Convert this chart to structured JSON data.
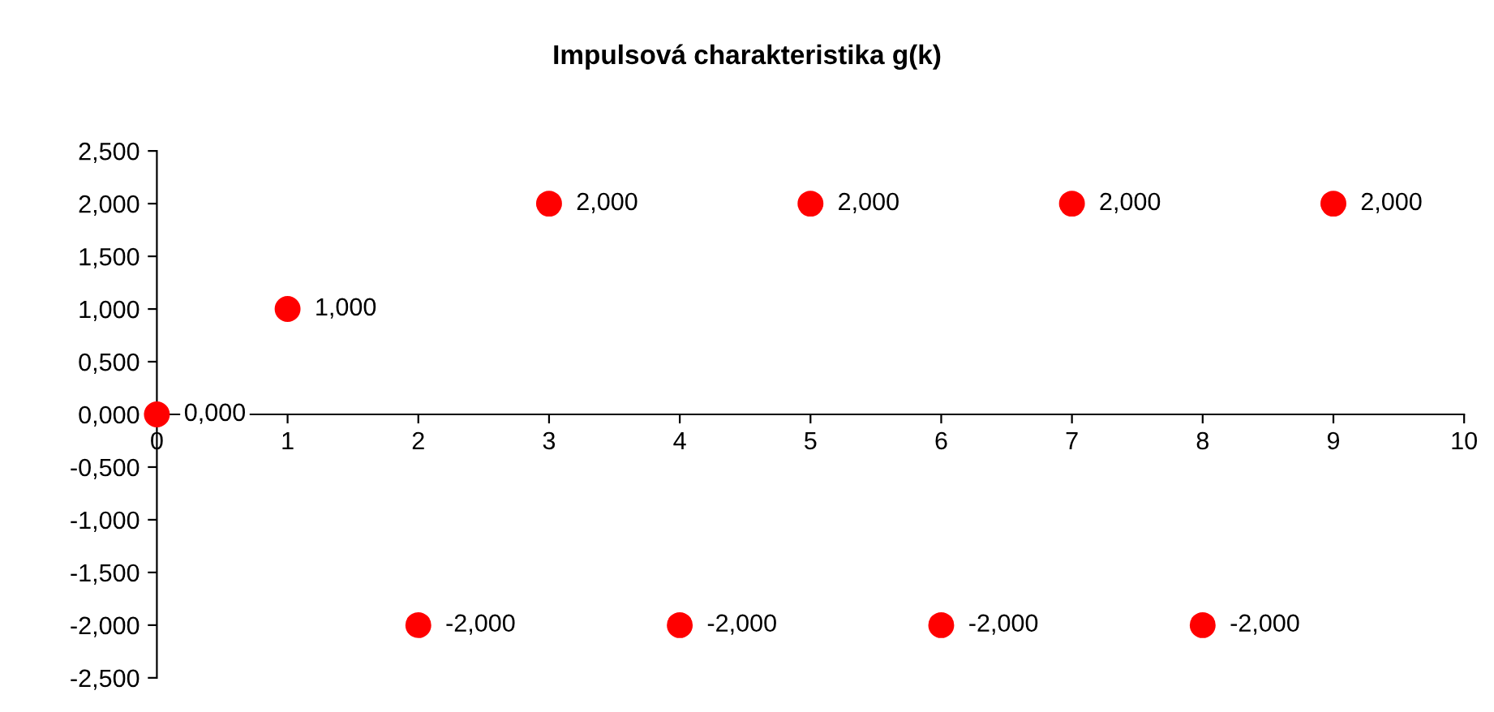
{
  "chart_data": {
    "type": "scatter",
    "title": "Impulsová charakteristika g(k)",
    "x": [
      0,
      1,
      2,
      3,
      4,
      5,
      6,
      7,
      8,
      9
    ],
    "series": [
      {
        "color": "#ff0000",
        "values": [
          0,
          1,
          -2,
          2,
          -2,
          2,
          -2,
          2,
          -2,
          2
        ],
        "value_labels": [
          "0,000",
          "1,000",
          "-2,000",
          "2,000",
          "-2,000",
          "2,000",
          "-2,000",
          "2,000",
          "-2,000",
          "2,000"
        ]
      }
    ],
    "xlim": [
      0,
      10
    ],
    "xticks": [
      0,
      1,
      2,
      3,
      4,
      5,
      6,
      7,
      8,
      9,
      10
    ],
    "ylim": [
      -2.5,
      2.5
    ],
    "yticks": [
      {
        "value": -2.5,
        "label": "-2,500"
      },
      {
        "value": -2,
        "label": "-2,000"
      },
      {
        "value": -1.5,
        "label": "-1,500"
      },
      {
        "value": -1,
        "label": "-1,000"
      },
      {
        "value": -0.5,
        "label": "-0,500"
      },
      {
        "value": 0,
        "label": "0,000"
      },
      {
        "value": 0.5,
        "label": "0,500"
      },
      {
        "value": 1,
        "label": "1,000"
      },
      {
        "value": 1.5,
        "label": "1,500"
      },
      {
        "value": 2,
        "label": "2,000"
      },
      {
        "value": 2.5,
        "label": "2,500"
      }
    ],
    "grid": false,
    "legend": false,
    "marker": "circle"
  }
}
